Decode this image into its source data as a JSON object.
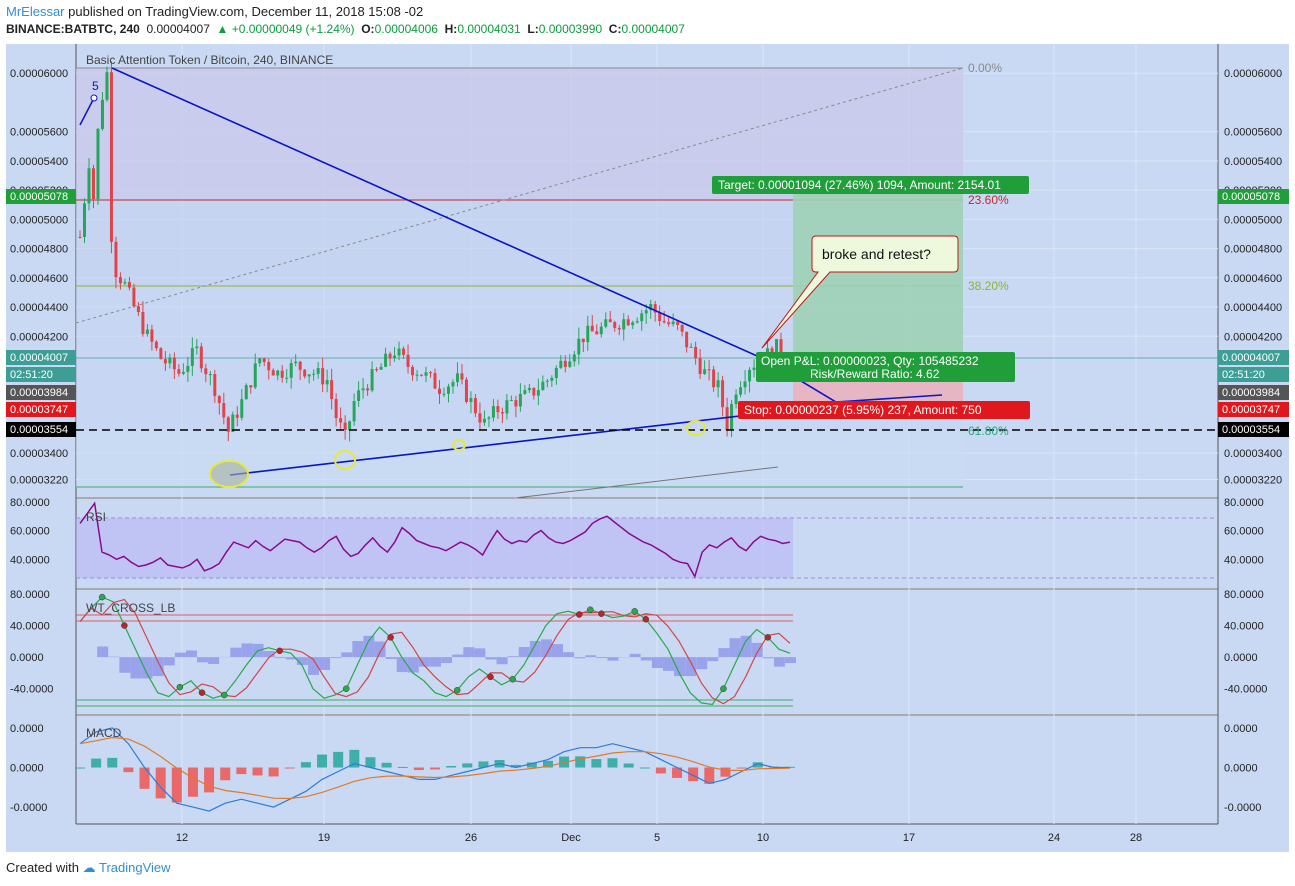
{
  "header": {
    "user": "MrElessar",
    "published": "published on TradingView.com, December 11, 2018 15:08 -02",
    "symbol": "BINANCE:BATBTC, 240",
    "price": "0.00004007",
    "change": "+0.00000049 (+1.24%)",
    "o_label": "O:",
    "o_val": "0.00004006",
    "h_label": "H:",
    "h_val": "0.00004031",
    "l_label": "L:",
    "l_val": "0.00003990",
    "c_label": "C:",
    "c_val": "0.00004007"
  },
  "footer": {
    "created": "Created with",
    "brand": "TradingView"
  },
  "chart_data": [
    {
      "type": "candlestick",
      "title": "Basic Attention Token / Bitcoin, 240, BINANCE",
      "y_ticks": [
        "0.00006000",
        "0.00005600",
        "0.00005400",
        "0.00005200",
        "0.00005000",
        "0.00004800",
        "0.00004600",
        "0.00004400",
        "0.00004200",
        "0.00003400",
        "0.00003220"
      ],
      "ylim": [
        3.1e-05,
        6.2e-05
      ],
      "x_ticks": [
        "12",
        "19",
        "26",
        "Dec",
        "5",
        "10",
        "17",
        "24",
        "28"
      ],
      "price_tags": [
        {
          "text": "0.00005078",
          "color": "#1f9e3a"
        },
        {
          "text": "0.00004007",
          "color": "#3d9e96"
        },
        {
          "text": "02:51:20",
          "color": "#3d9e96"
        },
        {
          "text": "0.00003984",
          "color": "#555555"
        },
        {
          "text": "0.00003747",
          "color": "#e0181e"
        },
        {
          "text": "0.00003554",
          "color": "#000000"
        }
      ],
      "fib_levels": [
        {
          "label": "0.00%",
          "price": 6e-05,
          "color": "#8a8a8a"
        },
        {
          "label": "23.60%",
          "price": 5.078e-05,
          "color": "#c02a2a"
        },
        {
          "label": "38.20%",
          "price": 4.49e-05,
          "color": "#8fb52a"
        },
        {
          "label": "61.80%",
          "price": 3.554e-05,
          "color": "#2aa87a"
        }
      ],
      "position": {
        "target": "Target: 0.00001094 (27.46%) 1094, Amount: 2154.01",
        "open": "Open P&L: 0.00000023, Qty: 105485232",
        "rr": "Risk/Reward Ratio: 4.62",
        "stop": "Stop: 0.00000237 (5.95%) 237, Amount: 750"
      },
      "annotations": {
        "callout": "broke and retest?",
        "wave": "5"
      },
      "price_path": [
        [
          0,
          4.88e-05
        ],
        [
          2,
          5.4e-05
        ],
        [
          3,
          5.15e-05
        ],
        [
          4,
          5.6e-05
        ],
        [
          5,
          5.85e-05
        ],
        [
          6,
          6e-05
        ],
        [
          7,
          4.9e-05
        ],
        [
          8,
          4.65e-05
        ],
        [
          10,
          4.55e-05
        ],
        [
          12,
          4.4e-05
        ],
        [
          15,
          4.2e-05
        ],
        [
          18,
          4.05e-05
        ],
        [
          22,
          3.95e-05
        ],
        [
          26,
          4.1e-05
        ],
        [
          30,
          3.85e-05
        ],
        [
          33,
          3.55e-05
        ],
        [
          36,
          3.75e-05
        ],
        [
          38,
          3.9e-05
        ],
        [
          40,
          4.05e-05
        ],
        [
          44,
          3.95e-05
        ],
        [
          48,
          4e-05
        ],
        [
          52,
          3.95e-05
        ],
        [
          55,
          3.9e-05
        ],
        [
          57,
          3.65e-05
        ],
        [
          59,
          3.5e-05
        ],
        [
          61,
          3.75e-05
        ],
        [
          63,
          3.85e-05
        ],
        [
          66,
          3.95e-05
        ],
        [
          70,
          4.1e-05
        ],
        [
          73,
          4e-05
        ],
        [
          76,
          3.95e-05
        ],
        [
          80,
          3.85e-05
        ],
        [
          84,
          3.9e-05
        ],
        [
          87,
          3.75e-05
        ],
        [
          90,
          3.6e-05
        ],
        [
          93,
          3.7e-05
        ],
        [
          96,
          3.75e-05
        ],
        [
          100,
          3.8e-05
        ],
        [
          104,
          3.9e-05
        ],
        [
          108,
          4.05e-05
        ],
        [
          112,
          4.2e-05
        ],
        [
          116,
          4.25e-05
        ],
        [
          120,
          4.3e-05
        ],
        [
          124,
          4.35e-05
        ],
        [
          127,
          4.4e-05
        ],
        [
          130,
          4.3e-05
        ],
        [
          133,
          4.25e-05
        ],
        [
          136,
          4.1e-05
        ],
        [
          139,
          3.95e-05
        ],
        [
          142,
          3.85e-05
        ],
        [
          144,
          3.6e-05
        ],
        [
          146,
          3.85e-05
        ],
        [
          149,
          4e-05
        ],
        [
          152,
          4.05e-05
        ],
        [
          155,
          4.12e-05
        ],
        [
          158,
          4.07e-05
        ]
      ]
    },
    {
      "type": "line",
      "name": "RSI",
      "y_ticks": [
        "80.0000",
        "60.0000",
        "40.0000"
      ],
      "ylim": [
        20,
        82
      ],
      "band": [
        30,
        70
      ],
      "values": [
        65,
        72,
        79,
        45,
        43,
        40,
        42,
        38,
        35,
        36,
        38,
        41,
        36,
        35,
        34,
        36,
        40,
        32,
        34,
        37,
        45,
        52,
        50,
        48,
        53,
        49,
        46,
        50,
        54,
        53,
        52,
        48,
        45,
        48,
        53,
        56,
        47,
        42,
        44,
        50,
        55,
        49,
        45,
        52,
        62,
        58,
        53,
        51,
        49,
        48,
        46,
        49,
        52,
        50,
        47,
        43,
        52,
        60,
        54,
        51,
        53,
        52,
        57,
        60,
        55,
        52,
        51,
        53,
        56,
        59,
        65,
        68,
        70,
        66,
        62,
        58,
        55,
        52,
        50,
        47,
        44,
        40,
        38,
        37,
        28,
        45,
        50,
        48,
        52,
        55,
        49,
        46,
        52,
        56,
        54,
        53,
        51,
        52
      ]
    },
    {
      "type": "line",
      "name": "WT_CROSS_LB",
      "y_ticks": [
        "80.0000",
        "40.0000",
        "0.0000",
        "-40.0000"
      ],
      "ylim": [
        -72,
        85
      ],
      "values": [
        45,
        62,
        76,
        70,
        40,
        10,
        -20,
        -45,
        -50,
        -38,
        -30,
        -45,
        -52,
        -48,
        -30,
        -10,
        8,
        12,
        8,
        5,
        -10,
        -40,
        -52,
        -48,
        -40,
        -10,
        20,
        38,
        25,
        0,
        -20,
        -30,
        -45,
        -50,
        -42,
        -25,
        -15,
        -25,
        -35,
        -28,
        -10,
        15,
        40,
        55,
        58,
        54,
        60,
        55,
        50,
        52,
        58,
        48,
        30,
        10,
        -20,
        -45,
        -58,
        -60,
        -40,
        -10,
        20,
        35,
        25,
        10,
        5
      ]
    },
    {
      "type": "line",
      "name": "MACD",
      "y_ticks": [
        "0.0000",
        "0.0000",
        "-0.0000"
      ],
      "ylim": [
        -1.4,
        1.3
      ],
      "values": [
        0.6,
        0.9,
        1.0,
        0.6,
        0.0,
        -0.5,
        -0.9,
        -1.0,
        -1.1,
        -0.9,
        -0.8,
        -0.9,
        -1.0,
        -0.8,
        -0.6,
        -0.3,
        -0.1,
        0.1,
        0.0,
        -0.1,
        -0.2,
        -0.3,
        -0.3,
        -0.2,
        -0.1,
        0.0,
        0.1,
        0.0,
        0.1,
        0.2,
        0.4,
        0.5,
        0.5,
        0.6,
        0.5,
        0.4,
        0.2,
        0.0,
        -0.2,
        -0.4,
        -0.3,
        -0.1,
        0.1,
        0.0,
        0.0
      ]
    }
  ]
}
